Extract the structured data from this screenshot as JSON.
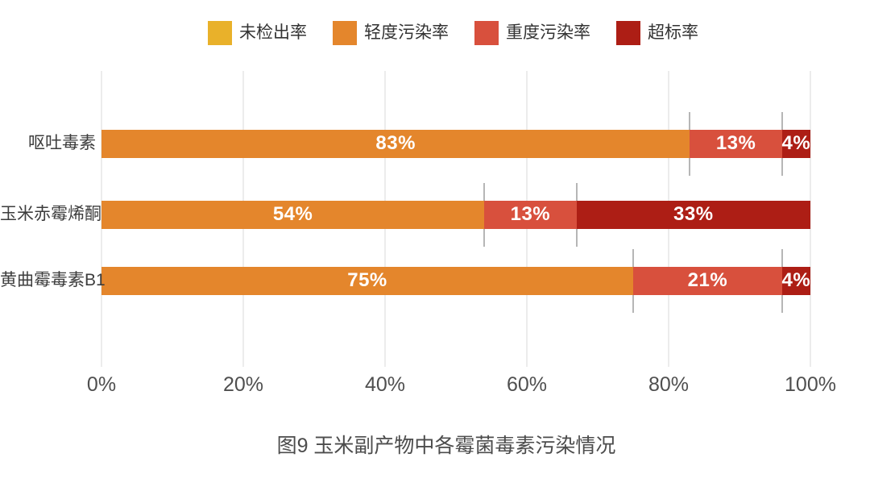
{
  "chart_data": {
    "type": "bar",
    "orientation": "horizontal",
    "stacked": true,
    "unit": "%",
    "title": "图9 玉米副产物中各霉菌毒素污染情况",
    "categories": [
      "呕吐毒素",
      "玉米赤霉烯酮",
      "黄曲霉毒素B1"
    ],
    "series": [
      {
        "name": "未检出率",
        "color": "#E9B12A",
        "values": [
          0,
          0,
          0
        ]
      },
      {
        "name": "轻度污染率",
        "color": "#E4862C",
        "values": [
          83,
          54,
          75
        ]
      },
      {
        "name": "重度污染率",
        "color": "#D8503D",
        "values": [
          13,
          13,
          21
        ]
      },
      {
        "name": "超标率",
        "color": "#AD1E15",
        "values": [
          4,
          33,
          4
        ]
      }
    ],
    "x_ticks": [
      "0%",
      "20%",
      "40%",
      "60%",
      "80%",
      "100%"
    ],
    "xlim": [
      0,
      100
    ],
    "grid": "vertical-gridlines",
    "legend_position": "top",
    "bar_labels": "percent-inside-segments"
  }
}
